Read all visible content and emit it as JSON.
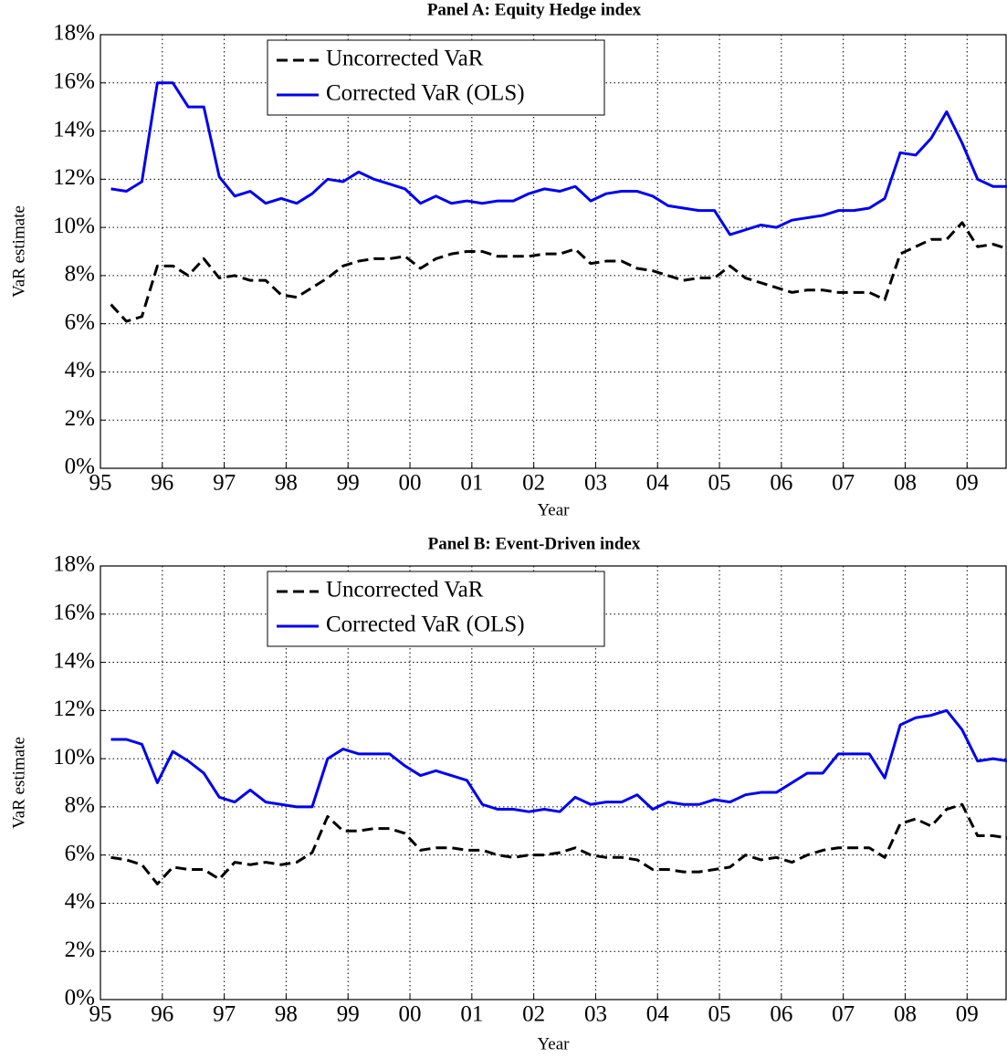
{
  "chart_data": [
    {
      "type": "line",
      "title": "Panel A: Equity Hedge index",
      "xlabel": "Year",
      "ylabel": "VaR estimate",
      "x": [
        1995.17,
        1995.42,
        1995.67,
        1995.92,
        1996.17,
        1996.42,
        1996.67,
        1996.92,
        1997.17,
        1997.42,
        1997.67,
        1997.92,
        1998.17,
        1998.42,
        1998.67,
        1998.92,
        1999.17,
        1999.42,
        1999.67,
        1999.92,
        2000.17,
        2000.42,
        2000.67,
        2000.92,
        2001.17,
        2001.42,
        2001.67,
        2001.92,
        2002.17,
        2002.42,
        2002.67,
        2002.92,
        2003.17,
        2003.42,
        2003.67,
        2003.92,
        2004.17,
        2004.42,
        2004.67,
        2004.92,
        2005.17,
        2005.42,
        2005.67,
        2005.92,
        2006.17,
        2006.42,
        2006.67,
        2006.92,
        2007.17,
        2007.42,
        2007.67,
        2007.92,
        2008.17,
        2008.42,
        2008.67,
        2008.92,
        2009.17,
        2009.42,
        2009.67
      ],
      "series": [
        {
          "name": "Uncorrected VaR",
          "color": "#000000",
          "linestyle": "dashed",
          "values": [
            6.8,
            6.1,
            6.3,
            8.4,
            8.4,
            8.0,
            8.7,
            7.9,
            8.0,
            7.8,
            7.8,
            7.2,
            7.1,
            7.5,
            7.9,
            8.4,
            8.6,
            8.7,
            8.7,
            8.8,
            8.3,
            8.7,
            8.9,
            9.0,
            9.0,
            8.8,
            8.8,
            8.8,
            8.9,
            8.9,
            9.1,
            8.5,
            8.6,
            8.6,
            8.3,
            8.2,
            8.0,
            7.8,
            7.9,
            7.9,
            8.4,
            7.9,
            7.7,
            7.5,
            7.3,
            7.4,
            7.4,
            7.3,
            7.3,
            7.3,
            7.0,
            8.9,
            9.2,
            9.5,
            9.5,
            10.2,
            9.2,
            9.3,
            9.1
          ]
        },
        {
          "name": "Corrected VaR (OLS)",
          "color": "#0000ee",
          "linestyle": "solid",
          "values": [
            11.6,
            11.5,
            11.9,
            16.0,
            16.0,
            15.0,
            15.0,
            12.1,
            11.3,
            11.5,
            11.0,
            11.2,
            11.0,
            11.4,
            12.0,
            11.9,
            12.3,
            12.0,
            11.8,
            11.6,
            11.0,
            11.3,
            11.0,
            11.1,
            11.0,
            11.1,
            11.1,
            11.4,
            11.6,
            11.5,
            11.7,
            11.1,
            11.4,
            11.5,
            11.5,
            11.3,
            10.9,
            10.8,
            10.7,
            10.7,
            9.7,
            9.9,
            10.1,
            10.0,
            10.3,
            10.4,
            10.5,
            10.7,
            10.7,
            10.8,
            11.2,
            13.1,
            13.0,
            13.7,
            14.8,
            13.5,
            12.0,
            11.7,
            11.7
          ]
        }
      ],
      "xlim": [
        1995,
        2009.63
      ],
      "xticks": [
        {
          "value": 1995,
          "label": "95"
        },
        {
          "value": 1996,
          "label": "96"
        },
        {
          "value": 1997,
          "label": "97"
        },
        {
          "value": 1998,
          "label": "98"
        },
        {
          "value": 1999,
          "label": "99"
        },
        {
          "value": 2000,
          "label": "00"
        },
        {
          "value": 2001,
          "label": "01"
        },
        {
          "value": 2002,
          "label": "02"
        },
        {
          "value": 2003,
          "label": "03"
        },
        {
          "value": 2004,
          "label": "04"
        },
        {
          "value": 2005,
          "label": "05"
        },
        {
          "value": 2006,
          "label": "06"
        },
        {
          "value": 2007,
          "label": "07"
        },
        {
          "value": 2008,
          "label": "08"
        },
        {
          "value": 2009,
          "label": "09"
        }
      ],
      "ylim": [
        0,
        18
      ],
      "yticks": [
        {
          "value": 0,
          "label": "0%"
        },
        {
          "value": 2,
          "label": "2%"
        },
        {
          "value": 4,
          "label": "4%"
        },
        {
          "value": 6,
          "label": "6%"
        },
        {
          "value": 8,
          "label": "8%"
        },
        {
          "value": 10,
          "label": "10%"
        },
        {
          "value": 12,
          "label": "12%"
        },
        {
          "value": 14,
          "label": "14%"
        },
        {
          "value": 16,
          "label": "16%"
        },
        {
          "value": 18,
          "label": "18%"
        }
      ],
      "grid": true,
      "legend": "upper left"
    },
    {
      "type": "line",
      "title": "Panel B: Event-Driven index",
      "xlabel": "Year",
      "ylabel": "VaR estimate",
      "x": [
        1995.17,
        1995.42,
        1995.67,
        1995.92,
        1996.17,
        1996.42,
        1996.67,
        1996.92,
        1997.17,
        1997.42,
        1997.67,
        1997.92,
        1998.17,
        1998.42,
        1998.67,
        1998.92,
        1999.17,
        1999.42,
        1999.67,
        1999.92,
        2000.17,
        2000.42,
        2000.67,
        2000.92,
        2001.17,
        2001.42,
        2001.67,
        2001.92,
        2002.17,
        2002.42,
        2002.67,
        2002.92,
        2003.17,
        2003.42,
        2003.67,
        2003.92,
        2004.17,
        2004.42,
        2004.67,
        2004.92,
        2005.17,
        2005.42,
        2005.67,
        2005.92,
        2006.17,
        2006.42,
        2006.67,
        2006.92,
        2007.17,
        2007.42,
        2007.67,
        2007.92,
        2008.17,
        2008.42,
        2008.67,
        2008.92,
        2009.17,
        2009.42,
        2009.67
      ],
      "series": [
        {
          "name": "Uncorrected VaR",
          "color": "#000000",
          "linestyle": "dashed",
          "values": [
            5.9,
            5.8,
            5.6,
            4.8,
            5.5,
            5.4,
            5.4,
            5.0,
            5.7,
            5.6,
            5.7,
            5.6,
            5.7,
            6.1,
            7.6,
            7.0,
            7.0,
            7.1,
            7.1,
            6.9,
            6.2,
            6.3,
            6.3,
            6.2,
            6.2,
            6.0,
            5.9,
            6.0,
            6.0,
            6.1,
            6.3,
            6.0,
            5.9,
            5.9,
            5.8,
            5.4,
            5.4,
            5.3,
            5.3,
            5.4,
            5.5,
            6.0,
            5.8,
            5.9,
            5.7,
            6.0,
            6.2,
            6.3,
            6.3,
            6.3,
            5.9,
            7.3,
            7.5,
            7.2,
            7.9,
            8.1,
            6.8,
            6.8,
            6.7
          ]
        },
        {
          "name": "Corrected VaR (OLS)",
          "color": "#0000ee",
          "linestyle": "solid",
          "values": [
            10.8,
            10.8,
            10.6,
            9.0,
            10.3,
            9.9,
            9.4,
            8.4,
            8.2,
            8.7,
            8.2,
            8.1,
            8.0,
            8.0,
            10.0,
            10.4,
            10.2,
            10.2,
            10.2,
            9.7,
            9.3,
            9.5,
            9.3,
            9.1,
            8.1,
            7.9,
            7.9,
            7.8,
            7.9,
            7.8,
            8.4,
            8.1,
            8.2,
            8.2,
            8.5,
            7.9,
            8.2,
            8.1,
            8.1,
            8.3,
            8.2,
            8.5,
            8.6,
            8.6,
            9.0,
            9.4,
            9.4,
            10.2,
            10.2,
            10.2,
            9.2,
            11.4,
            11.7,
            11.8,
            12.0,
            11.2,
            9.9,
            10.0,
            9.9
          ]
        }
      ],
      "xlim": [
        1995,
        2009.63
      ],
      "xticks": [
        {
          "value": 1995,
          "label": "95"
        },
        {
          "value": 1996,
          "label": "96"
        },
        {
          "value": 1997,
          "label": "97"
        },
        {
          "value": 1998,
          "label": "98"
        },
        {
          "value": 1999,
          "label": "99"
        },
        {
          "value": 2000,
          "label": "00"
        },
        {
          "value": 2001,
          "label": "01"
        },
        {
          "value": 2002,
          "label": "02"
        },
        {
          "value": 2003,
          "label": "03"
        },
        {
          "value": 2004,
          "label": "04"
        },
        {
          "value": 2005,
          "label": "05"
        },
        {
          "value": 2006,
          "label": "06"
        },
        {
          "value": 2007,
          "label": "07"
        },
        {
          "value": 2008,
          "label": "08"
        },
        {
          "value": 2009,
          "label": "09"
        }
      ],
      "ylim": [
        0,
        18
      ],
      "yticks": [
        {
          "value": 0,
          "label": "0%"
        },
        {
          "value": 2,
          "label": "2%"
        },
        {
          "value": 4,
          "label": "4%"
        },
        {
          "value": 6,
          "label": "6%"
        },
        {
          "value": 8,
          "label": "8%"
        },
        {
          "value": 10,
          "label": "10%"
        },
        {
          "value": 12,
          "label": "12%"
        },
        {
          "value": 14,
          "label": "14%"
        },
        {
          "value": 16,
          "label": "16%"
        },
        {
          "value": 18,
          "label": "18%"
        }
      ],
      "grid": true,
      "legend": "upper left"
    }
  ]
}
